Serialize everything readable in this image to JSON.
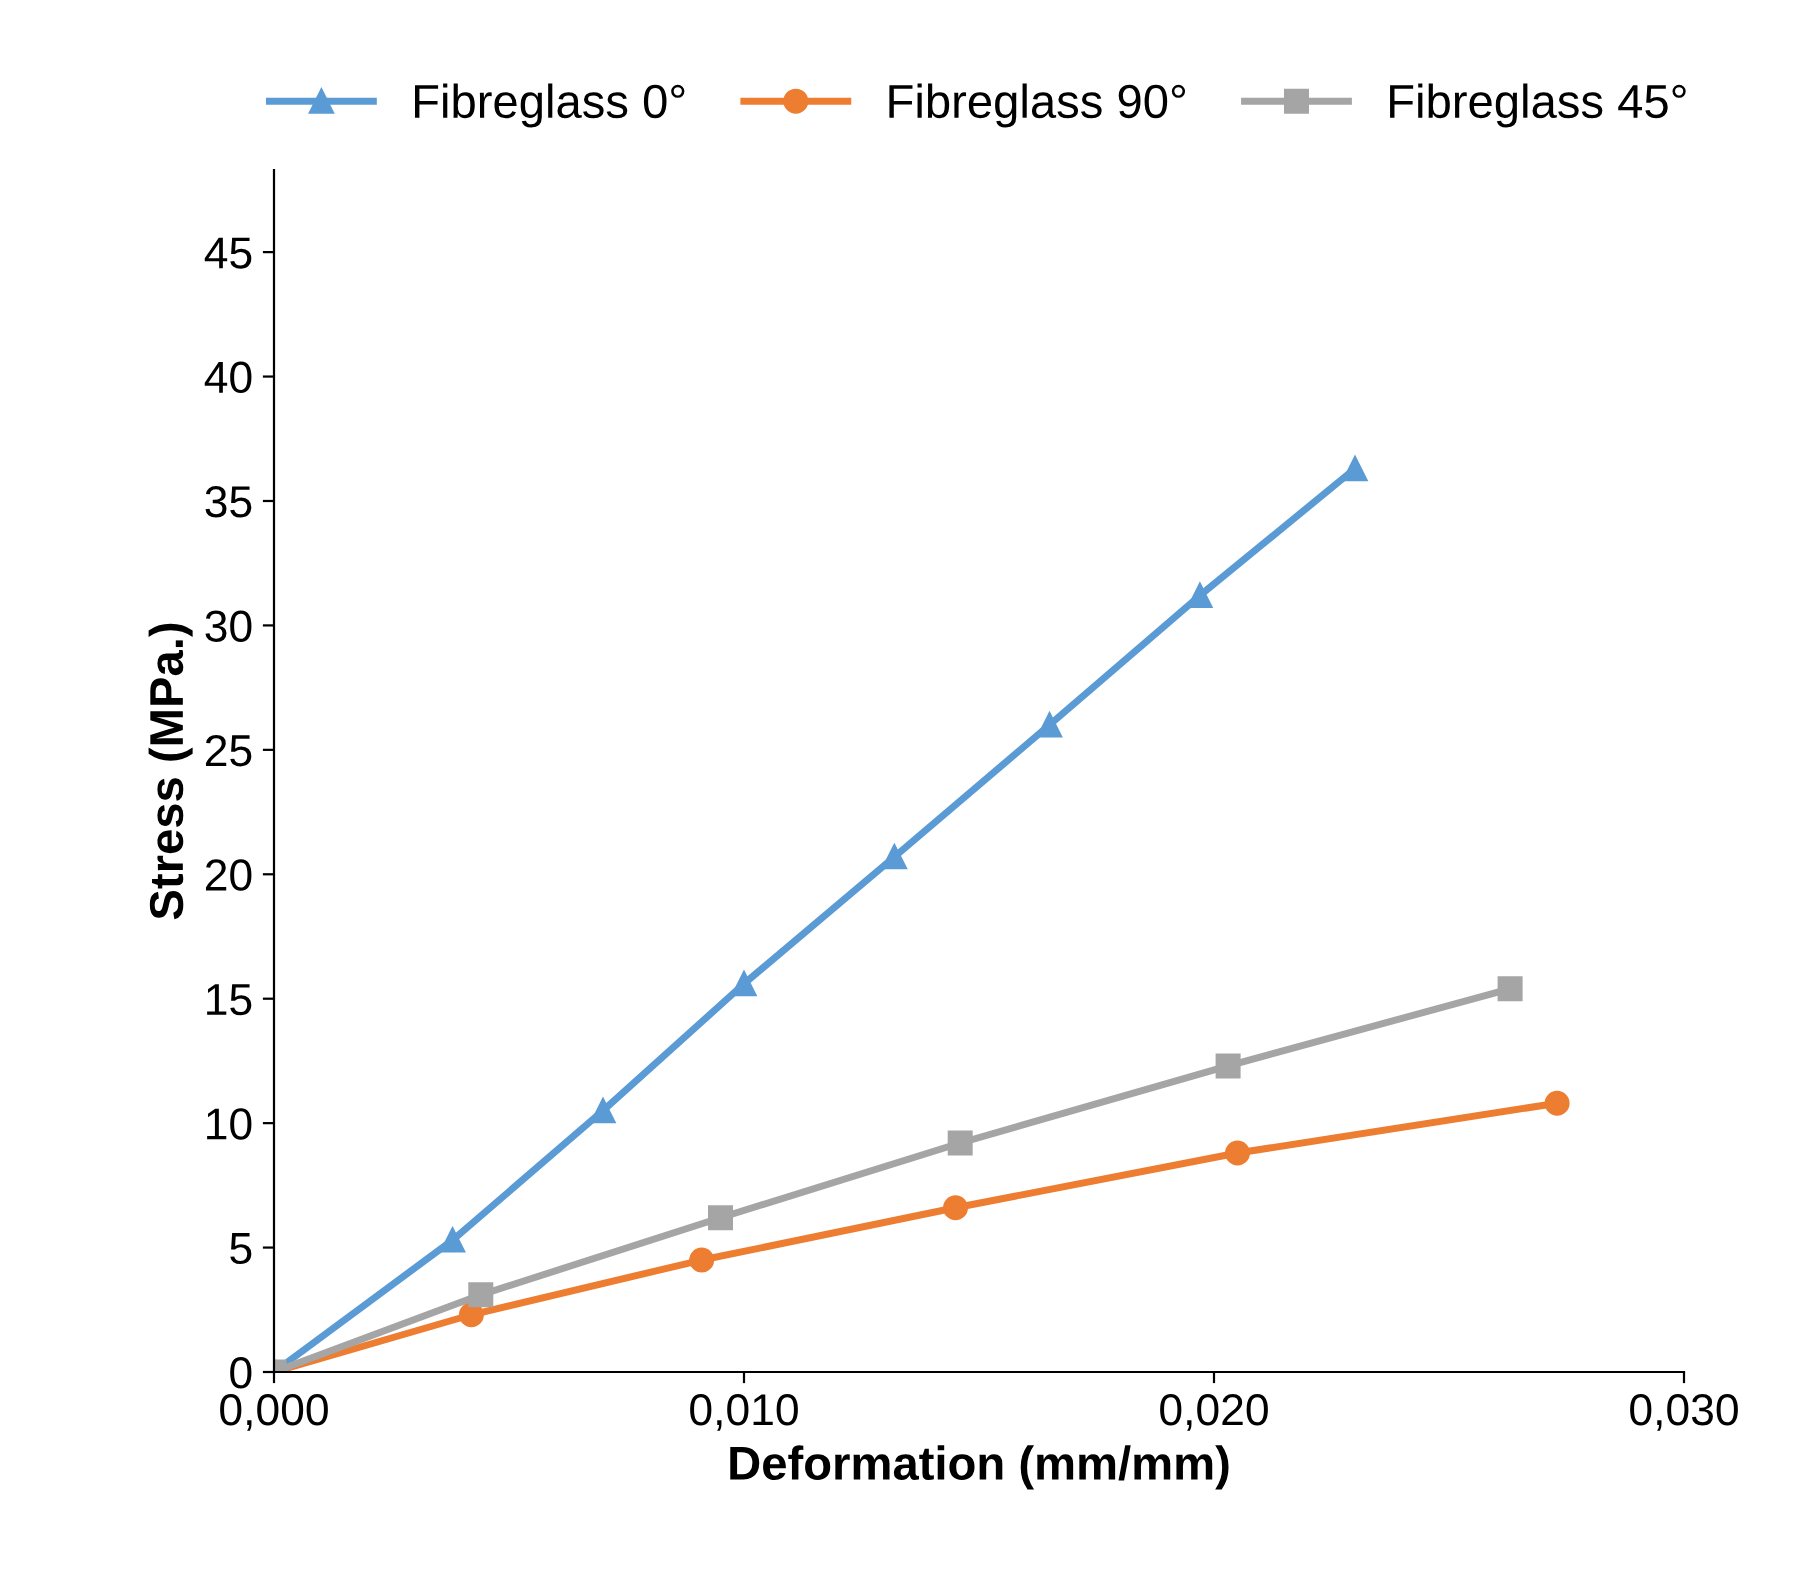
{
  "chart_data": {
    "type": "line",
    "xlabel": "Deformation (mm/mm)",
    "ylabel": "Stress (MPa.)",
    "xlim": [
      0,
      0.03
    ],
    "xticks": [
      {
        "value": 0,
        "label": "0,000"
      },
      {
        "value": 0.01,
        "label": "0,010"
      },
      {
        "value": 0.02,
        "label": "0,020"
      },
      {
        "value": 0.03,
        "label": "0,030"
      }
    ],
    "ylim": [
      0,
      48.3
    ],
    "yticks": [
      0,
      5,
      10,
      15,
      20,
      25,
      30,
      35,
      40,
      45
    ],
    "grid": false,
    "legend": "top",
    "series": [
      {
        "name": "Fibreglass 0°",
        "color": "#5b9bd5",
        "marker": "triangle",
        "x": [
          0,
          0.0038,
          0.007,
          0.01,
          0.0132,
          0.0165,
          0.0197,
          0.023
        ],
        "values": [
          0,
          5.3,
          10.5,
          15.6,
          20.7,
          26.0,
          31.2,
          36.3
        ]
      },
      {
        "name": "Fibreglass 90°",
        "color": "#ed7d31",
        "marker": "circle",
        "x": [
          0,
          0.0042,
          0.0091,
          0.0145,
          0.0205,
          0.0273
        ],
        "values": [
          0,
          2.3,
          4.5,
          6.6,
          8.8,
          10.8
        ]
      },
      {
        "name": "Fibreglass 45°",
        "color": "#a5a5a5",
        "marker": "square",
        "x": [
          0,
          0.0044,
          0.0095,
          0.0146,
          0.0203,
          0.0263
        ],
        "values": [
          0,
          3.1,
          6.2,
          9.2,
          12.3,
          15.4
        ]
      }
    ]
  }
}
